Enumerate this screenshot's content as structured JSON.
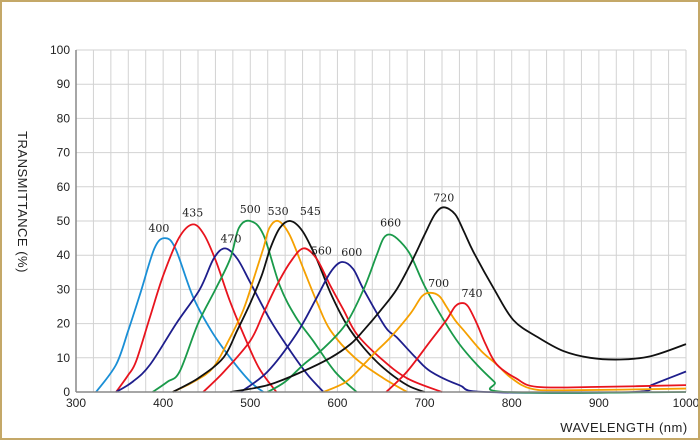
{
  "chart_data": {
    "type": "line",
    "title": "",
    "xlabel": "WAVELENGTH (nm)",
    "ylabel": "TRANSMITTANCE  (%)",
    "xlim": [
      300,
      1000
    ],
    "ylim": [
      0,
      100
    ],
    "xticks": [
      300,
      400,
      500,
      600,
      700,
      800,
      900,
      1000
    ],
    "yticks": [
      0,
      10,
      20,
      30,
      40,
      50,
      60,
      70,
      80,
      90,
      100
    ],
    "grid": true,
    "legend": "none",
    "series": [
      {
        "name": "400",
        "color": "#1a8fd6",
        "peak": [
          402,
          45
        ],
        "points": [
          [
            323,
            0
          ],
          [
            346,
            8
          ],
          [
            360,
            18
          ],
          [
            374,
            29
          ],
          [
            390,
            42
          ],
          [
            402,
            45
          ],
          [
            414,
            42
          ],
          [
            434,
            28
          ],
          [
            455,
            18
          ],
          [
            477,
            10
          ],
          [
            500,
            3
          ],
          [
            515,
            0
          ]
        ]
      },
      {
        "name": "435",
        "color": "#e8141e",
        "peak": [
          434,
          49
        ],
        "points": [
          [
            346,
            0
          ],
          [
            360,
            5
          ],
          [
            369,
            9
          ],
          [
            385,
            22
          ],
          [
            400,
            34
          ],
          [
            418,
            45
          ],
          [
            434,
            49
          ],
          [
            447,
            46
          ],
          [
            461,
            38
          ],
          [
            476,
            27
          ],
          [
            492,
            17
          ],
          [
            510,
            7
          ],
          [
            530,
            0
          ]
        ]
      },
      {
        "name": "470",
        "color": "#1e1e8c",
        "peak": [
          471,
          42
        ],
        "points": [
          [
            346,
            0
          ],
          [
            365,
            3
          ],
          [
            385,
            8
          ],
          [
            415,
            20
          ],
          [
            442,
            30
          ],
          [
            458,
            39
          ],
          [
            471,
            42
          ],
          [
            485,
            39
          ],
          [
            500,
            32
          ],
          [
            523,
            21
          ],
          [
            546,
            12
          ],
          [
            566,
            5
          ],
          [
            584,
            0
          ]
        ]
      },
      {
        "name": "500",
        "color": "#1a9a4a",
        "peak": [
          500,
          50
        ],
        "points": [
          [
            388,
            0
          ],
          [
            405,
            3
          ],
          [
            419,
            6
          ],
          [
            440,
            20
          ],
          [
            460,
            30
          ],
          [
            477,
            39
          ],
          [
            487,
            48
          ],
          [
            500,
            50
          ],
          [
            515,
            46
          ],
          [
            534,
            31
          ],
          [
            552,
            22
          ],
          [
            572,
            15
          ],
          [
            597,
            6
          ],
          [
            622,
            0
          ]
        ]
      },
      {
        "name": "530",
        "color": "#f5a000",
        "peak": [
          532,
          50
        ],
        "points": [
          [
            411,
            0
          ],
          [
            435,
            3
          ],
          [
            457,
            7
          ],
          [
            475,
            15
          ],
          [
            492,
            24
          ],
          [
            505,
            34
          ],
          [
            515,
            42
          ],
          [
            522,
            48
          ],
          [
            532,
            50
          ],
          [
            545,
            46
          ],
          [
            561,
            36
          ],
          [
            577,
            26
          ],
          [
            592,
            18
          ],
          [
            620,
            10
          ],
          [
            653,
            4
          ],
          [
            680,
            0
          ]
        ]
      },
      {
        "name": "545",
        "color": "#111111",
        "peak": [
          546,
          50
        ],
        "points": [
          [
            411,
            0
          ],
          [
            440,
            4
          ],
          [
            469,
            10
          ],
          [
            485,
            18
          ],
          [
            500,
            26
          ],
          [
            513,
            34
          ],
          [
            523,
            42
          ],
          [
            534,
            48
          ],
          [
            546,
            50
          ],
          [
            560,
            47
          ],
          [
            576,
            39
          ],
          [
            592,
            29
          ],
          [
            610,
            20
          ],
          [
            630,
            13
          ],
          [
            653,
            7
          ],
          [
            680,
            2
          ],
          [
            700,
            0
          ]
        ]
      },
      {
        "name": "560",
        "color": "#e8141e",
        "peak": [
          561,
          42
        ],
        "points": [
          [
            446,
            0
          ],
          [
            470,
            6
          ],
          [
            500,
            15
          ],
          [
            515,
            23
          ],
          [
            530,
            31
          ],
          [
            546,
            38
          ],
          [
            561,
            42
          ],
          [
            576,
            39
          ],
          [
            592,
            31
          ],
          [
            607,
            24
          ],
          [
            622,
            17
          ],
          [
            649,
            10
          ],
          [
            680,
            4
          ],
          [
            720,
            0
          ]
        ]
      },
      {
        "name": "600",
        "color": "#1e1e8c",
        "peak": [
          605,
          38
        ],
        "points": [
          [
            489,
            0
          ],
          [
            520,
            6
          ],
          [
            553,
            17
          ],
          [
            575,
            27
          ],
          [
            592,
            35
          ],
          [
            605,
            38
          ],
          [
            618,
            36
          ],
          [
            630,
            30
          ],
          [
            655,
            19
          ],
          [
            668,
            16
          ],
          [
            690,
            10
          ],
          [
            707,
            6
          ],
          [
            740,
            2
          ],
          [
            771,
            0
          ],
          [
            940,
            0
          ],
          [
            960,
            2
          ],
          [
            980,
            4
          ],
          [
            1000,
            6
          ]
        ]
      },
      {
        "name": "660",
        "color": "#1a9a4a",
        "peak": [
          661,
          46
        ],
        "points": [
          [
            520,
            0
          ],
          [
            540,
            3
          ],
          [
            561,
            8
          ],
          [
            585,
            13
          ],
          [
            610,
            20
          ],
          [
            630,
            30
          ],
          [
            645,
            40
          ],
          [
            653,
            45
          ],
          [
            661,
            46
          ],
          [
            672,
            44
          ],
          [
            684,
            40
          ],
          [
            700,
            31
          ],
          [
            722,
            21
          ],
          [
            740,
            14
          ],
          [
            760,
            8
          ],
          [
            780,
            3
          ],
          [
            794,
            0
          ],
          [
            1000,
            0
          ]
        ]
      },
      {
        "name": "720",
        "color": "#111111",
        "peak": [
          722,
          54
        ],
        "points": [
          [
            477,
            0
          ],
          [
            520,
            2
          ],
          [
            560,
            6
          ],
          [
            592,
            10
          ],
          [
            615,
            14
          ],
          [
            630,
            18
          ],
          [
            650,
            24
          ],
          [
            668,
            30
          ],
          [
            685,
            38
          ],
          [
            700,
            46
          ],
          [
            712,
            52
          ],
          [
            722,
            54
          ],
          [
            735,
            52
          ],
          [
            745,
            47
          ],
          [
            756,
            41
          ],
          [
            780,
            30
          ],
          [
            802,
            21
          ],
          [
            830,
            16
          ],
          [
            859,
            12
          ],
          [
            890,
            10
          ],
          [
            925,
            9.5
          ],
          [
            960,
            10.5
          ],
          [
            1000,
            14
          ]
        ]
      },
      {
        "name": "700",
        "color": "#f5a000",
        "peak": [
          707,
          29
        ],
        "points": [
          [
            584,
            0
          ],
          [
            610,
            3
          ],
          [
            630,
            8
          ],
          [
            645,
            12
          ],
          [
            661,
            16
          ],
          [
            684,
            23
          ],
          [
            697,
            28
          ],
          [
            707,
            29
          ],
          [
            717,
            28
          ],
          [
            725,
            25
          ],
          [
            735,
            21
          ],
          [
            745,
            18
          ],
          [
            765,
            12
          ],
          [
            783,
            8
          ],
          [
            800,
            4
          ],
          [
            822,
            1
          ],
          [
            860,
            0.5
          ],
          [
            1000,
            1
          ]
        ]
      },
      {
        "name": "740",
        "color": "#e8141e",
        "peak": [
          743,
          26
        ],
        "points": [
          [
            656,
            0
          ],
          [
            680,
            6
          ],
          [
            707,
            15
          ],
          [
            725,
            21
          ],
          [
            735,
            25
          ],
          [
            743,
            26
          ],
          [
            750,
            25
          ],
          [
            760,
            20
          ],
          [
            770,
            14
          ],
          [
            783,
            8
          ],
          [
            805,
            4
          ],
          [
            829,
            1.5
          ],
          [
            900,
            1.5
          ],
          [
            1000,
            2
          ]
        ]
      }
    ]
  }
}
